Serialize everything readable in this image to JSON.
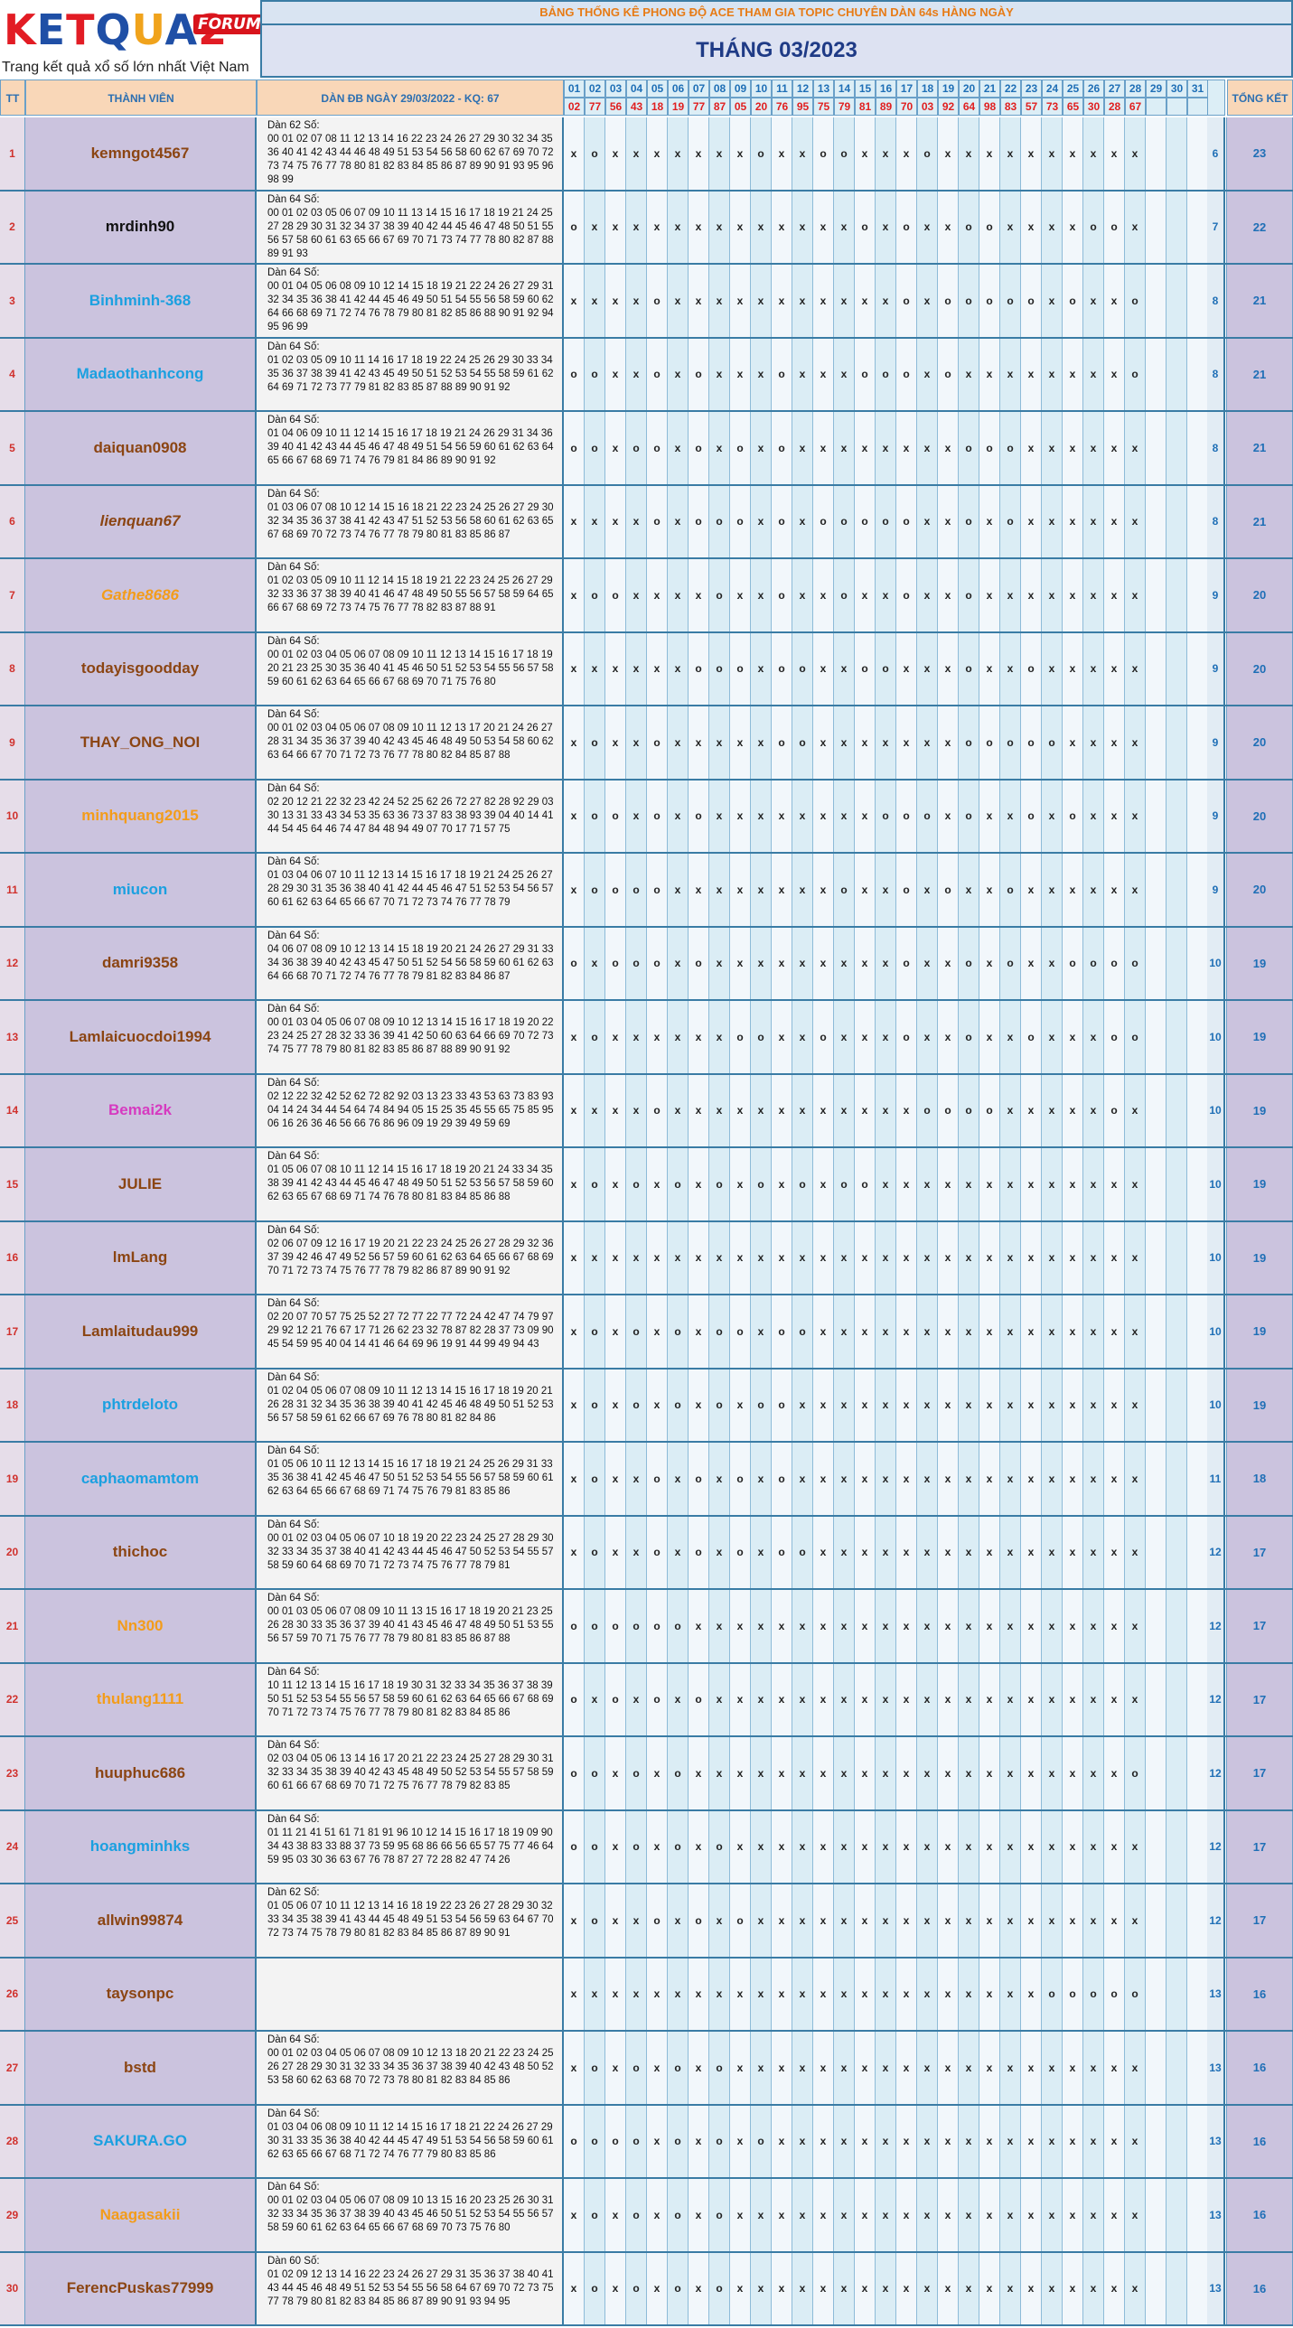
{
  "logo": {
    "text": "KETQUA2",
    "badge": "FORUM",
    "tagline": "Trang kết quả xổ số lớn nhất Việt Nam",
    "letter_colors": [
      "#e21c24",
      "#1f4fa6",
      "#e21c24",
      "#1f4fa6",
      "#f0a31c",
      "#1f4fa6",
      "#e21c24"
    ]
  },
  "banner": {
    "title": "BẢNG THỐNG KÊ PHONG ĐỘ ACE THAM GIA TOPIC CHUYÊN DÀN 64s HÀNG NGÀY",
    "month": "THÁNG 03/2023"
  },
  "headers": {
    "tt": "TT",
    "member": "THÀNH VIÊN",
    "dan": "DÀN ĐB NGÀY 29/03/2022 - KQ: 67",
    "total": "TỔNG KẾT"
  },
  "days": [
    "01",
    "02",
    "03",
    "04",
    "05",
    "06",
    "07",
    "08",
    "09",
    "10",
    "11",
    "12",
    "13",
    "14",
    "15",
    "16",
    "17",
    "18",
    "19",
    "20",
    "21",
    "22",
    "23",
    "24",
    "25",
    "26",
    "27",
    "28",
    "29",
    "30",
    "31"
  ],
  "results": [
    "02",
    "77",
    "56",
    "43",
    "18",
    "19",
    "77",
    "87",
    "05",
    "20",
    "76",
    "95",
    "75",
    "79",
    "81",
    "89",
    "70",
    "03",
    "92",
    "64",
    "98",
    "83",
    "57",
    "73",
    "65",
    "30",
    "28",
    "67",
    "",
    "",
    ""
  ],
  "rows": [
    {
      "tt": "1",
      "name": "kemngot4567",
      "color": "#8b4513",
      "italic": false,
      "dan_label": "Dàn 62 Số:",
      "dan_numbers": "00 01 02 07 08 11 12 13 14 16 22 23 24 26 27 29 30 32 34 35 36 40 41 42 43 44 46 48 49 51 53 54 56 58 60 62 67 69 70 72 73 74 75 76 77 78 80 81 82 83 84 85 86 87 89 90 91 93 95 96 98 99",
      "marks": "xoxxxxxxxoxxooxxxoxxxxxxxxxx",
      "count": "6",
      "total": "23"
    },
    {
      "tt": "2",
      "name": "mrdinh90",
      "color": "#111111",
      "italic": false,
      "dan_label": "Dàn 64 Số:",
      "dan_numbers": "00 01 02 03 05 06 07 09 10 11 13 14 15 16 17 18 19 21 24 25 27 28 29 30 31 32 34 37 38 39 40 42 44 45 46 47 48 50 51 55 56 57 58 60 61 63 65 66 67 69 70 71 73 74 77 78 80 82 87 88 89 91 93",
      "marks": "oxxxxxxxxxxxxxoxoxxooxxxxoox",
      "count": "7",
      "total": "22"
    },
    {
      "tt": "3",
      "name": "Binhminh-368",
      "color": "#1ba0e0",
      "italic": false,
      "dan_label": "Dàn 64 Số:",
      "dan_numbers": "00 01 04 05 06 08 09 10 12 14 15 18 19 21 22 24 26 27 29 31 32 34 35 36 38 41 42 44 45 46 49 50 51 54 55 56 58 59 60 62 64 66 68 69 71 72 74 76 78 79 80 81 82 85 86 88 90 91 92 94 95 96 99",
      "marks": "xxxxoxxxxxxxxxxxoxoooooxoxxo",
      "count": "8",
      "total": "21"
    },
    {
      "tt": "4",
      "name": "Madaothanhcong",
      "color": "#1ba0e0",
      "italic": false,
      "dan_label": "Dàn 64 Số:",
      "dan_numbers": "01 02 03 05 09 10 11 14 16 17 18 19 22 24 25 26 29 30 33 34 35 36 37 38 39 41 42 43 45 49 50 51 52 53 54 55 58 59 61 62 64 69 71 72 73 77 79 81 82 83 85 87 88 89 90 91 92",
      "marks": "ooxxoxoxxxoxxxoooxoxxxxxxxxo",
      "count": "8",
      "total": "21"
    },
    {
      "tt": "5",
      "name": "daiquan0908",
      "color": "#8b4513",
      "italic": false,
      "dan_label": "Dàn 64 Số:",
      "dan_numbers": "01 04 06 09 10 11 12 14 15 16 17 18 19 21 24 26 29 31 34 36 39 40 41 42 43 44 45 46 47 48 49 51 54 56 59 60 61 62 63 64 65 66 67 68 69 71 74 76 79 81 84 86 89 90 91 92",
      "marks": "ooxooxoxoxoxxxxxxxxoooxxxxxx",
      "count": "8",
      "total": "21"
    },
    {
      "tt": "6",
      "name": "lienquan67",
      "color": "#8b4513",
      "italic": true,
      "dan_label": "Dàn 64 Số:",
      "dan_numbers": "01 03 06 07 08 10 12 14 15 16 18 21 22 23 24 25 26 27 29 30 32 34 35 36 37 38 41 42 43 47 51 52 53 56 58 60 61 62 63 65 67 68 69 70 72 73 74 76 77 78 79 80 81 83 85 86 87",
      "marks": "xxxxoxoooxoxoooooxxoxoxxxxxx",
      "count": "8",
      "total": "21"
    },
    {
      "tt": "7",
      "name": "Gathe8686",
      "color": "#f39c1a",
      "italic": true,
      "dan_label": "Dàn 64 Số:",
      "dan_numbers": "01 02 03 05 09 10 11 12 14 15 18 19 21 22 23 24 25 26 27 29 32 33 36 37 38 39 40 41 46 47 48 49 50 55 56 57 58 59 64 65 66 67 68 69 72 73 74 75 76 77 78 82 83 87 88 91",
      "marks": "xooxxxxoxxoxxoxxoxxoxxxxxxxx",
      "count": "9",
      "total": "20"
    },
    {
      "tt": "8",
      "name": "todayisgoodday",
      "color": "#8b4513",
      "italic": false,
      "dan_label": "Dàn 64 Số:",
      "dan_numbers": "00 01 02 03 04 05 06 07 08 09 10 11 12 13 14 15 16 17 18 19 20 21 23 25 30 35 36 40 41 45 46 50 51 52 53 54 55 56 57 58 59 60 61 62 63 64 65 66 67 68 69 70 71 75 76 80",
      "marks": "xxxxxxoooxooxxooxxxoxxoxxxxx",
      "count": "9",
      "total": "20"
    },
    {
      "tt": "9",
      "name": "THAY_ONG_NOI",
      "color": "#8b4513",
      "italic": false,
      "dan_label": "Dàn 64 Số:",
      "dan_numbers": "00 01 02 03 04 05 06 07 08 09 10 11 12 13 17 20 21 24 26 27 28 31 34 35 36 37 39 40 42 43 45 46 48 49 50 53 54 58 60 62 63 64 66 67 70 71 72 73 76 77 78 80 82 84 85 87 88",
      "marks": "xoxxoxxxxxooxxxxxxxoooooxxxx",
      "count": "9",
      "total": "20"
    },
    {
      "tt": "10",
      "name": "minhquang2015",
      "color": "#f39c1a",
      "italic": false,
      "dan_label": "Dàn 64 Số:",
      "dan_numbers": "02 20 12 21 22 32 23 42 24 52 25 62 26 72 27 82 28 92 29 03 30 13 31 33 43 34 53 35 63 36 73 37 83 38 93 39 04 40 14 41 44 54 45 64 46 74 47 84 48 94 49 07 70 17 71 57 75",
      "marks": "xooxoxoxxxxxxxxoooxoxxoxoxxx",
      "count": "9",
      "total": "20"
    },
    {
      "tt": "11",
      "name": "miucon",
      "color": "#1ba0e0",
      "italic": false,
      "dan_label": "Dàn 64 Số:",
      "dan_numbers": "01 03 04 06 07 10 11 12 13 14 15 16 17 18 19 21 24 25 26 27 28 29 30 31 35 36 38 40 41 42 44 45 46 47 51 52 53 54 56 57 60 61 62 63 64 65 66 67 70 71 72 73 74 76 77 78 79",
      "marks": "xooooxxxxxxxxoxxoxoxxoxxxxxx",
      "count": "9",
      "total": "20"
    },
    {
      "tt": "12",
      "name": "damri9358",
      "color": "#8b4513",
      "italic": false,
      "dan_label": "Dàn 64 Số:",
      "dan_numbers": "04 06 07 08 09 10 12 13 14 15 18 19 20 21 24 26 27 29 31 33 34 36 38 39 40 42 43 45 47 50 51 52 54 56 58 59 60 61 62 63 64 66 68 70 71 72 74 76 77 78 79 81 82 83 84 86 87",
      "marks": "oxoooxoxxxxxxxxxoxxoxoxxoooo",
      "count": "10",
      "total": "19"
    },
    {
      "tt": "13",
      "name": "Lamlaicuocdoi1994",
      "color": "#8b4513",
      "italic": false,
      "dan_label": "Dàn 64 Số:",
      "dan_numbers": "00 01 03 04 05 06 07 08 09 10 12 13 14 15 16 17 18 19 20 22 23 24 25 27 28 32 33 36 39 41 42 50 60 63 64 66 69 70 72 73 74 75 77 78 79 80 81 82 83 85 86 87 88 89 90 91 92",
      "marks": "xoxxxxxxooxxoxxxoxxoxxoxxxoo",
      "count": "10",
      "total": "19"
    },
    {
      "tt": "14",
      "name": "Bemai2k",
      "color": "#d63ac0",
      "italic": false,
      "dan_label": "Dàn 64 Số:",
      "dan_numbers": "02 12 22 32 42 52 62 72 82 92 03 13 23 33 43 53 63 73 83 93 04 14 24 34 44 54 64 74 84 94 05 15 25 35 45 55 65 75 85 95 06 16 26 36 46 56 66 76 86 96 09 19 29 39 49 59 69",
      "marks": "xxxxoxxxxxxxxxxxxooooxxxxxox",
      "count": "10",
      "total": "19"
    },
    {
      "tt": "15",
      "name": "JULIE",
      "color": "#8b4513",
      "italic": false,
      "dan_label": "Dàn 64 Số:",
      "dan_numbers": "01 05 06 07 08 10 11 12 14 15 16 17 18 19 20 21 24 33 34 35 38 39 41 42 43 44 45 46 47 48 49 50 51 52 53 56 57 58 59 60 62 63 65 67 68 69 71 74 76 78 80 81 83 84 85 86 88",
      "marks": "xoxoxoxoxoxoxooxxxxxxxxxxxxx",
      "count": "10",
      "total": "19"
    },
    {
      "tt": "16",
      "name": "lmLang",
      "color": "#8b4513",
      "italic": false,
      "dan_label": "Dàn 64 Số:",
      "dan_numbers": "02 06 07 09 12 16 17 19 20 21 22 23 24 25 26 27 28 29 32 36 37 39 42 46 47 49 52 56 57 59 60 61 62 63 64 65 66 67 68 69 70 71 72 73 74 75 76 77 78 79 82 86 87 89 90 91 92",
      "marks": "xxxxxxxxxxxxxxxxxxxxxxxxxxxx",
      "count": "10",
      "total": "19"
    },
    {
      "tt": "17",
      "name": "Lamlaitudau999",
      "color": "#8b4513",
      "italic": false,
      "dan_label": "Dàn 64 Số:",
      "dan_numbers": "02 20 07 70 57 75 25 52 27 72 77 22 77 72 24 42 47 74 79 97 29 92 12 21 76 67 17 71 26 62 23 32 78 87 82 28 37 73 09 90 45 54 59 95 40 04 14 41 46 64 69 96 19 91 44 99 49 94 43",
      "marks": "xoxoxoxooxooxxxxxxxxxxxxxxxx",
      "count": "10",
      "total": "19"
    },
    {
      "tt": "18",
      "name": "phtrdeloto",
      "color": "#1ba0e0",
      "italic": false,
      "dan_label": "Dàn 64 Số:",
      "dan_numbers": "01 02 04 05 06 07 08 09 10 11 12 13 14 15 16 17 18 19 20 21 26 28 31 32 34 35 36 38 39 40 41 42 45 46 48 49 50 51 52 53 56 57 58 59 61 62 66 67 69 76 78 80 81 82 84 86",
      "marks": "xoxoxoxoxooxxxxxxxxxxxxxxxxx",
      "count": "10",
      "total": "19"
    },
    {
      "tt": "19",
      "name": "caphaomamtom",
      "color": "#1ba0e0",
      "italic": false,
      "dan_label": "Dàn 64 Số:",
      "dan_numbers": "01 05 06 10 11 12 13 14 15 16 17 18 19 21 24 25 26 29 31 33 35 36 38 41 42 45 46 47 50 51 52 53 54 55 56 57 58 59 60 61 62 63 64 65 66 67 68 69 71 74 75 76 79 81 83 85 86",
      "marks": "xoxxoxoxoxoxxxxxxxxxxxxxxxxx",
      "count": "11",
      "total": "18"
    },
    {
      "tt": "20",
      "name": "thichoc",
      "color": "#8b4513",
      "italic": false,
      "dan_label": "Dàn 64 Số:",
      "dan_numbers": "00 01 02 03 04 05 06 07 10 18 19 20 22 23 24 25 27 28 29 30 32 33 34 35 37 38 40 41 42 43 44 45 46 47 50 52 53 54 55 57 58 59 60 64 68 69 70 71 72 73 74 75 76 77 78 79 81",
      "marks": "xoxxoxoxoxooxxxxxxxxxxxxxxxx",
      "count": "12",
      "total": "17"
    },
    {
      "tt": "21",
      "name": "Nn300",
      "color": "#f39c1a",
      "italic": false,
      "dan_label": "Dàn 64 Số:",
      "dan_numbers": "00 01 03 05 06 07 08 09 10 11 13 15 16 17 18 19 20 21 23 25 26 28 30 33 35 36 37 39 40 41 43 45 46 47 48 49 50 51 53 55 56 57 59 70 71 75 76 77 78 79 80 81 83 85 86 87 88",
      "marks": "ooooooxxxxxxxxxxxxxxxxxxxxxx",
      "count": "12",
      "total": "17"
    },
    {
      "tt": "22",
      "name": "thulang1111",
      "color": "#f39c1a",
      "italic": false,
      "dan_label": "Dàn 64 Số:",
      "dan_numbers": "10 11 12 13 14 15 16 17 18 19 30 31 32 33 34 35 36 37 38 39 50 51 52 53 54 55 56 57 58 59 60 61 62 63 64 65 66 67 68 69 70 71 72 73 74 75 76 77 78 79 80 81 82 83 84 85 86",
      "marks": "oxoxoxoxxxxxxxxxxxxxxxxxxxxx",
      "count": "12",
      "total": "17"
    },
    {
      "tt": "23",
      "name": "huuphuc686",
      "color": "#8b4513",
      "italic": false,
      "dan_label": "Dàn 64 Số:",
      "dan_numbers": "02 03 04 05 06 13 14 16 17 20 21 22 23 24 25 27 28 29 30 31 32 33 34 35 38 39 40 42 43 45 48 49 50 52 53 54 55 57 58 59 60 61 66 67 68 69 70 71 72 75 76 77 78 79 82 83 85",
      "marks": "ooxoxoxxxxxxxxxxxxxxxxxxxxxo",
      "count": "12",
      "total": "17"
    },
    {
      "tt": "24",
      "name": "hoangminhks",
      "color": "#1ba0e0",
      "italic": false,
      "dan_label": "Dàn 64 Số:",
      "dan_numbers": "01 11 21 41 51 61 71 81 91 96 10 12 14 15 16 17 18 19 09 90 34 43 38 83 33 88 37 73 59 95 68 86 66 56 65 57 75 77 46 64 59 95 03 30 36 63 67 76 78 87 27 72 28 82 47 74 26",
      "marks": "ooxoxoxoxxxxxxxxxxxxxxxxxxxx",
      "count": "12",
      "total": "17"
    },
    {
      "tt": "25",
      "name": "allwin99874",
      "color": "#8b4513",
      "italic": false,
      "dan_label": "Dàn 62 Số:",
      "dan_numbers": "01 05 06 07 10 11 12 13 14 16 18 19 22 23 26 27 28 29 30 32 33 34 35 38 39 41 43 44 45 48 49 51 53 54 56 59 63 64 67 70 72 73 74 75 78 79 80 81 82 83 84 85 86 87 89 90 91",
      "marks": "xoxxoxoxoxxxxxxxxxxxxxxxxxxx",
      "count": "12",
      "total": "17"
    },
    {
      "tt": "26",
      "name": "taysonpc",
      "color": "#8b4513",
      "italic": false,
      "dan_label": "",
      "dan_numbers": "",
      "marks": "xxxxxxxxxxxxxxxxxxxxxxxooooo",
      "count": "13",
      "total": "16"
    },
    {
      "tt": "27",
      "name": "bstd",
      "color": "#8b4513",
      "italic": false,
      "dan_label": "Dàn 64 Số:",
      "dan_numbers": "00 01 02 03 04 05 06 07 08 09 10 12 13 18 20 21 22 23 24 25 26 27 28 29 30 31 32 33 34 35 36 37 38 39 40 42 43 48 50 52 53 58 60 62 63 68 70 72 73 78 80 81 82 83 84 85 86",
      "marks": "xoxoxoxoxxxxxxxxxxxxxxxxxxxx",
      "count": "13",
      "total": "16"
    },
    {
      "tt": "28",
      "name": "SAKURA.GO",
      "color": "#1ba0e0",
      "italic": false,
      "dan_label": "Dàn 64 Số:",
      "dan_numbers": "01 03 04 06 08 09 10 11 12 14 15 16 17 18 21 22 24 26 27 29 30 31 33 35 36 38 40 42 44 45 47 49 51 53 54 56 58 59 60 61 62 63 65 66 67 68 71 72 74 76 77 79 80 83 85 86",
      "marks": "ooooxoxoxoxxxxxxxxxxxxxxxxxx",
      "count": "13",
      "total": "16"
    },
    {
      "tt": "29",
      "name": "Naagasakii",
      "color": "#f39c1a",
      "italic": false,
      "dan_label": "Dàn 64 Số:",
      "dan_numbers": "00 01 02 03 04 05 06 07 08 09 10 13 15 16 20 23 25 26 30 31 32 33 34 35 36 37 38 39 40 43 45 46 50 51 52 53 54 55 56 57 58 59 60 61 62 63 64 65 66 67 68 69 70 73 75 76 80",
      "marks": "xoxoxoxoxxxxxxxxxxxxxxxxxxxx",
      "count": "13",
      "total": "16"
    },
    {
      "tt": "30",
      "name": "FerencPuskas77999",
      "color": "#8b4513",
      "italic": false,
      "dan_label": "Dàn 60 Số:",
      "dan_numbers": "01 02 09 12 13 14 16 22 23 24 26 27 29 31 35 36 37 38 40 41 43 44 45 46 48 49 51 52 53 54 55 56 58 64 67 69 70 72 73 75 77 78 79 80 81 82 83 84 85 86 87 89 90 91 93 94 95",
      "marks": "xoxoxoxoxxxxxxxxxxxxxxxxxxxx",
      "count": "13",
      "total": "16"
    }
  ]
}
